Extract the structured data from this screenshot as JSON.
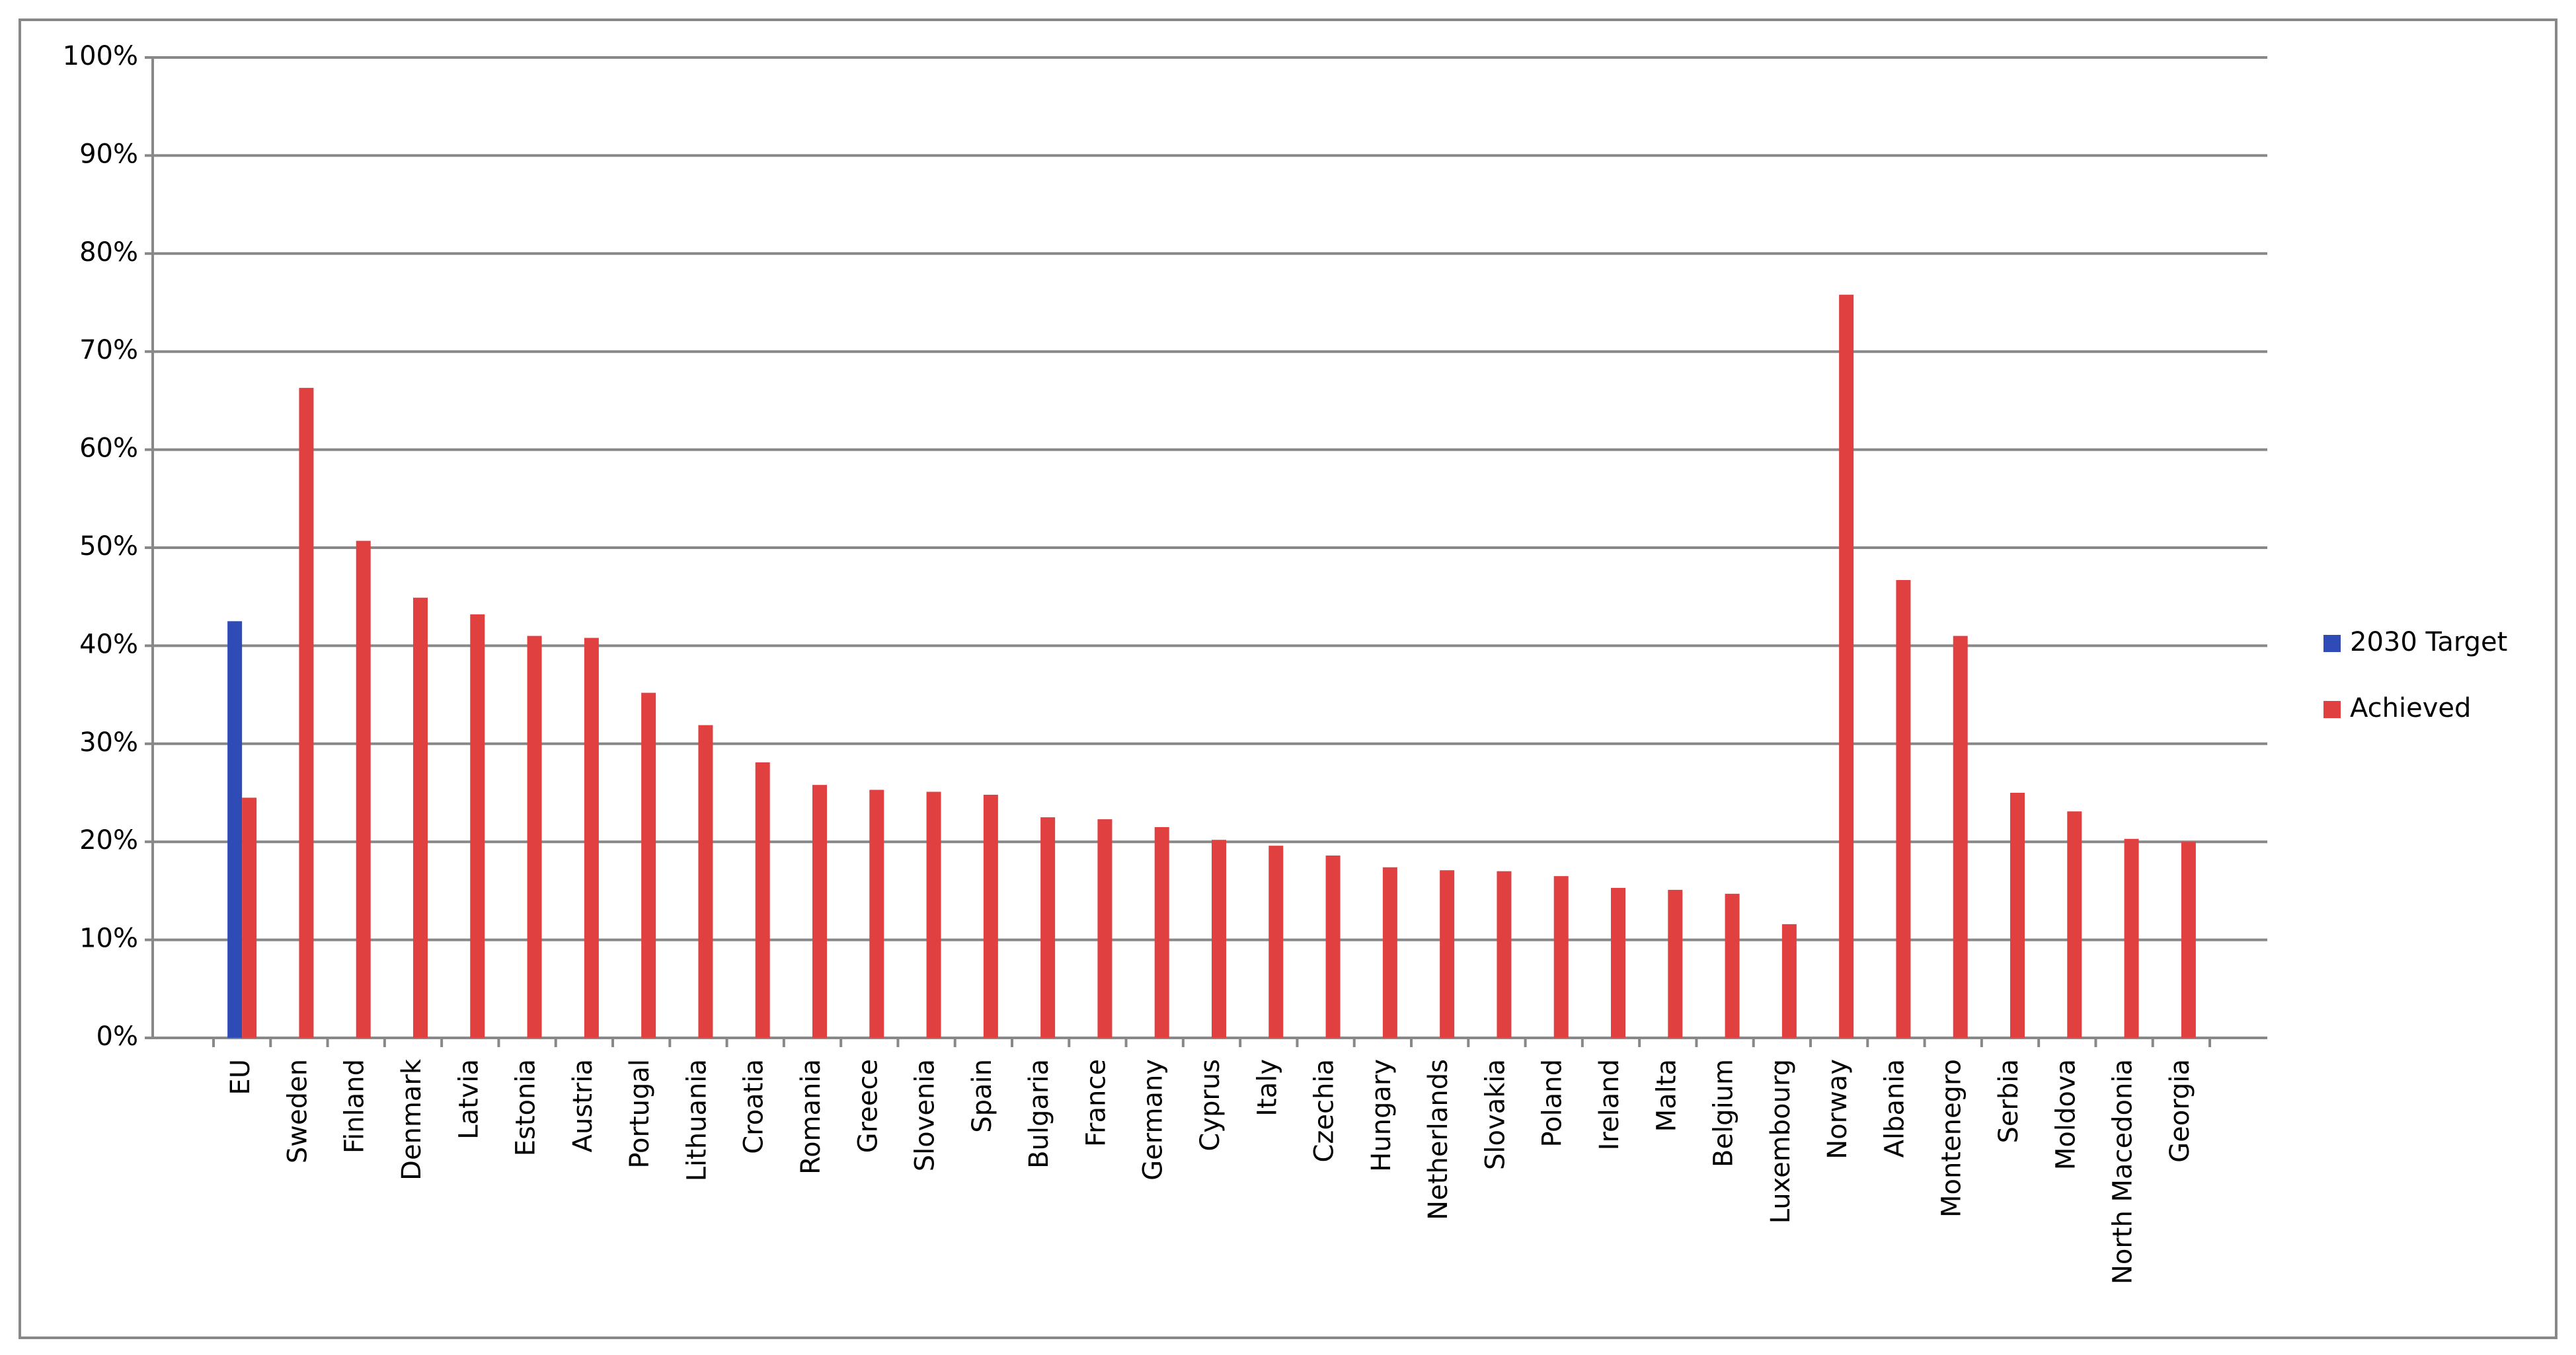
{
  "chart_data": {
    "type": "bar",
    "categories": [
      "EU",
      "Sweden",
      "Finland",
      "Denmark",
      "Latvia",
      "Estonia",
      "Austria",
      "Portugal",
      "Lithuania",
      "Croatia",
      "Romania",
      "Greece",
      "Slovenia",
      "Spain",
      "Bulgaria",
      "France",
      "Germany",
      "Cyprus",
      "Italy",
      "Czechia",
      "Hungary",
      "Netherlands",
      "Slovakia",
      "Poland",
      "Ireland",
      "Malta",
      "Belgium",
      "Luxembourg",
      "Norway",
      "Albania",
      "Montenegro",
      "Serbia",
      "Moldova",
      "North Macedonia",
      "Georgia"
    ],
    "series": [
      {
        "name": "2030 Target",
        "color": "#2f4bb5",
        "values": [
          42.5,
          null,
          null,
          null,
          null,
          null,
          null,
          null,
          null,
          null,
          null,
          null,
          null,
          null,
          null,
          null,
          null,
          null,
          null,
          null,
          null,
          null,
          null,
          null,
          null,
          null,
          null,
          null,
          null,
          null,
          null,
          null,
          null,
          null,
          null
        ]
      },
      {
        "name": "Achieved",
        "color": "#e04040",
        "values": [
          24.5,
          66.3,
          50.7,
          44.9,
          43.2,
          41.0,
          40.8,
          35.2,
          31.9,
          28.1,
          25.8,
          25.3,
          25.1,
          24.8,
          22.5,
          22.3,
          21.5,
          20.2,
          19.6,
          18.6,
          17.4,
          17.1,
          17.0,
          16.5,
          15.3,
          15.1,
          14.7,
          11.6,
          75.8,
          46.7,
          41.0,
          25.0,
          23.1,
          20.3,
          20.0
        ]
      }
    ],
    "ylim": [
      0,
      100
    ],
    "yticks": [
      {
        "value": 0,
        "label": "0%"
      },
      {
        "value": 10,
        "label": "10%"
      },
      {
        "value": 20,
        "label": "20%"
      },
      {
        "value": 30,
        "label": "30%"
      },
      {
        "value": 40,
        "label": "40%"
      },
      {
        "value": 50,
        "label": "50%"
      },
      {
        "value": 60,
        "label": "60%"
      },
      {
        "value": 70,
        "label": "70%"
      },
      {
        "value": 80,
        "label": "80%"
      },
      {
        "value": 90,
        "label": "90%"
      },
      {
        "value": 100,
        "label": "100%"
      }
    ],
    "grid": true,
    "legend": "right"
  }
}
